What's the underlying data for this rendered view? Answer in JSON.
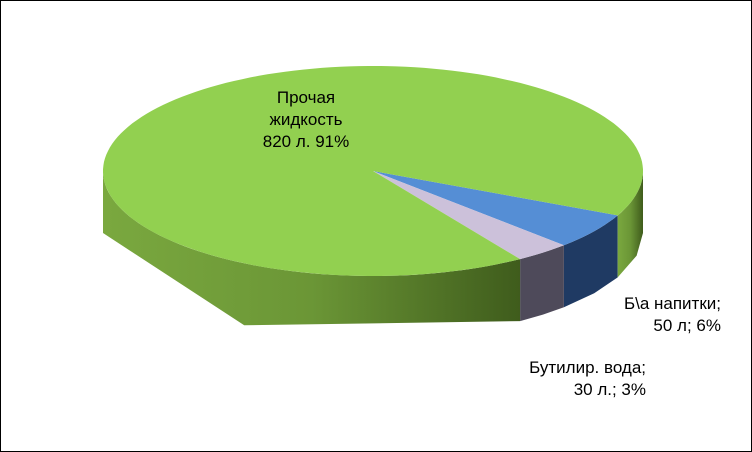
{
  "chart_data": {
    "type": "pie",
    "categories": [
      "Прочая жидкость",
      "Б\\а напитки;",
      "Бутилир. вода;"
    ],
    "values": [
      820,
      50,
      30
    ],
    "value_labels": [
      "820 л.  91%",
      "50 л; 6%",
      "30 л.; 3%"
    ],
    "colors": [
      "#92d050",
      "#558ed5",
      "#ccc1da"
    ]
  }
}
